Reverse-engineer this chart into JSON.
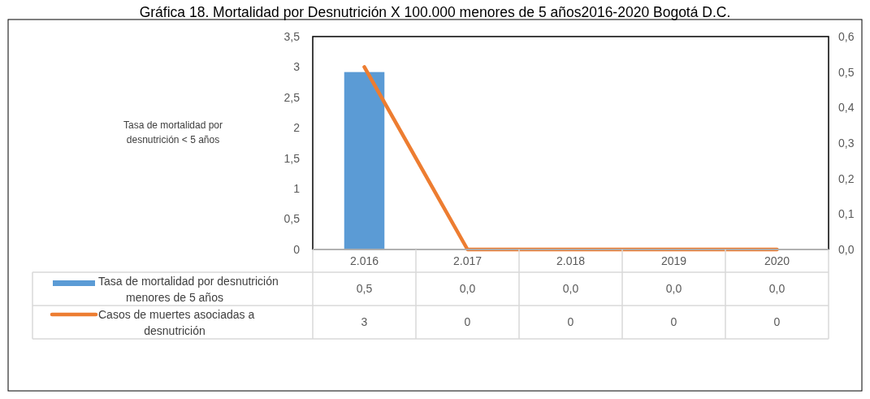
{
  "chart_data": {
    "type": "bar",
    "title": "Gráfica 18. Mortalidad por Desnutrición X 100.000 menores de 5 años2016-2020 Bogotá D.C.",
    "annotations": [
      "Tasa de mortalidad por desnutrición < 5 años"
    ],
    "categories": [
      "2.016",
      "2.017",
      "2.018",
      "2019",
      "2020"
    ],
    "series": [
      {
        "name": "Tasa de mortalidad por desnutrición menores de 5 años",
        "axis": "y2",
        "color": "#5b9bd5",
        "values": [
          0.5,
          0,
          0,
          0,
          0
        ],
        "value_labels": [
          "0,5",
          "0,0",
          "0,0",
          "0,0",
          "0,0"
        ]
      },
      {
        "name": "Casos de muertes asociadas a desnutrición",
        "type": "line",
        "axis": "y",
        "color": "#ed7d31",
        "values": [
          3,
          0,
          0,
          0,
          0
        ],
        "value_labels": [
          "3",
          "0",
          "0",
          "0",
          "0"
        ]
      }
    ],
    "ylim": [
      0,
      3.5
    ],
    "yticks": [
      0,
      {
        "value": 0.5,
        "label": "0,5"
      },
      1,
      {
        "value": 1.5,
        "label": "1,5"
      },
      2,
      {
        "value": 2.5,
        "label": "2,5"
      },
      3,
      {
        "value": 3.5,
        "label": "3,5"
      }
    ],
    "y2lim": [
      0,
      0.6
    ],
    "y2ticks": [
      {
        "value": 0,
        "label": "0,0"
      },
      {
        "value": 0.1,
        "label": "0,1"
      },
      {
        "value": 0.2,
        "label": "0,2"
      },
      {
        "value": 0.3,
        "label": "0,3"
      },
      {
        "value": 0.4,
        "label": "0,4"
      },
      {
        "value": 0.5,
        "label": "0,5"
      },
      {
        "value": 0.6,
        "label": "0,6"
      }
    ],
    "legend": "bottom",
    "grid": false
  }
}
